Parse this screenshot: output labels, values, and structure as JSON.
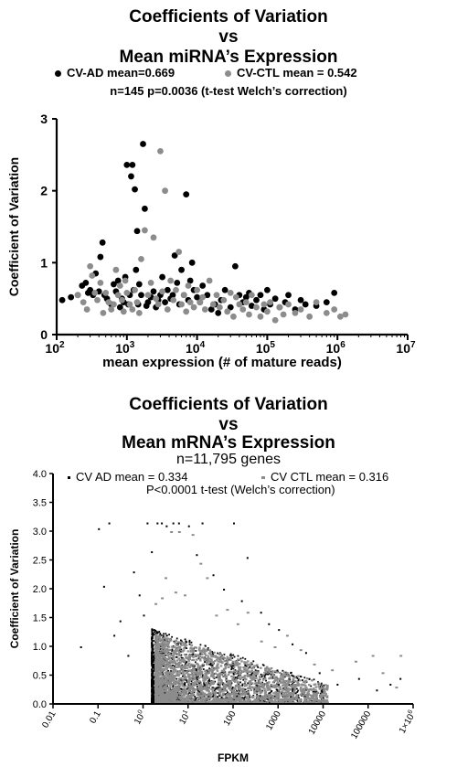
{
  "chart_data": [
    {
      "type": "scatter",
      "title": [
        "Coefficients of Variation",
        "vs",
        "Mean miRNA’s Expression"
      ],
      "subtitle": "n=145 p=0.0036 (t-test Welch’s correction)",
      "xlabel": "mean expression (# of mature reads)",
      "ylabel": "Coefficient of Variation",
      "xscale": "log",
      "xlim": [
        100,
        10000000
      ],
      "ylim": [
        0,
        3
      ],
      "yticks": [
        "0",
        "1",
        "2",
        "3"
      ],
      "xticks": [
        {
          "base": "10",
          "exp": "2"
        },
        {
          "base": "10",
          "exp": "3"
        },
        {
          "base": "10",
          "exp": "4"
        },
        {
          "base": "10",
          "exp": "5"
        },
        {
          "base": "10",
          "exp": "6"
        },
        {
          "base": "10",
          "exp": "7"
        }
      ],
      "legend_position": "top",
      "series": [
        {
          "name": "CV-AD mean=0.669",
          "color": "#000000",
          "points": [
            [
              120,
              0.48
            ],
            [
              160,
              0.52
            ],
            [
              200,
              0.55
            ],
            [
              230,
              0.68
            ],
            [
              260,
              0.72
            ],
            [
              280,
              0.58
            ],
            [
              300,
              0.62
            ],
            [
              330,
              0.55
            ],
            [
              360,
              0.85
            ],
            [
              400,
              0.6
            ],
            [
              420,
              1.08
            ],
            [
              450,
              1.28
            ],
            [
              480,
              0.55
            ],
            [
              520,
              0.5
            ],
            [
              600,
              0.42
            ],
            [
              650,
              0.7
            ],
            [
              700,
              0.6
            ],
            [
              750,
              0.75
            ],
            [
              800,
              0.38
            ],
            [
              850,
              0.5
            ],
            [
              900,
              0.45
            ],
            [
              950,
              0.8
            ],
            [
              1000,
              2.36
            ],
            [
              1050,
              0.42
            ],
            [
              1100,
              0.55
            ],
            [
              1150,
              2.2
            ],
            [
              1200,
              2.36
            ],
            [
              1250,
              0.62
            ],
            [
              1300,
              2.02
            ],
            [
              1350,
              0.9
            ],
            [
              1400,
              1.44
            ],
            [
              1450,
              0.42
            ],
            [
              1500,
              0.7
            ],
            [
              1600,
              0.55
            ],
            [
              1700,
              2.65
            ],
            [
              1800,
              1.75
            ],
            [
              1900,
              0.4
            ],
            [
              2000,
              0.45
            ],
            [
              2200,
              0.52
            ],
            [
              2400,
              0.6
            ],
            [
              2600,
              0.38
            ],
            [
              2800,
              0.48
            ],
            [
              3000,
              0.55
            ],
            [
              3200,
              0.8
            ],
            [
              3500,
              0.45
            ],
            [
              3800,
              0.62
            ],
            [
              4200,
              0.5
            ],
            [
              4500,
              0.55
            ],
            [
              4800,
              1.1
            ],
            [
              5200,
              0.72
            ],
            [
              5600,
              0.42
            ],
            [
              6000,
              0.9
            ],
            [
              6500,
              0.55
            ],
            [
              7000,
              1.95
            ],
            [
              7500,
              0.48
            ],
            [
              8000,
              0.75
            ],
            [
              8500,
              1.0
            ],
            [
              9000,
              0.62
            ],
            [
              10000,
              0.52
            ],
            [
              11000,
              0.45
            ],
            [
              12000,
              0.68
            ],
            [
              14000,
              0.55
            ],
            [
              16000,
              0.35
            ],
            [
              18000,
              0.42
            ],
            [
              20000,
              0.3
            ],
            [
              22000,
              0.48
            ],
            [
              25000,
              0.62
            ],
            [
              30000,
              0.38
            ],
            [
              35000,
              0.95
            ],
            [
              40000,
              0.55
            ],
            [
              45000,
              0.45
            ],
            [
              50000,
              0.52
            ],
            [
              55000,
              0.58
            ],
            [
              60000,
              0.4
            ],
            [
              70000,
              0.48
            ],
            [
              80000,
              0.55
            ],
            [
              90000,
              0.35
            ],
            [
              100000,
              0.62
            ],
            [
              110000,
              0.42
            ],
            [
              130000,
              0.5
            ],
            [
              150000,
              0.38
            ],
            [
              180000,
              0.45
            ],
            [
              200000,
              0.55
            ],
            [
              250000,
              0.35
            ],
            [
              300000,
              0.48
            ],
            [
              350000,
              0.42
            ],
            [
              500000,
              0.4
            ],
            [
              700000,
              0.45
            ],
            [
              900000,
              0.58
            ]
          ]
        },
        {
          "name": "CV-CTL mean = 0.542",
          "color": "#8c8c8c",
          "points": [
            [
              200,
              0.55
            ],
            [
              240,
              0.45
            ],
            [
              270,
              0.35
            ],
            [
              300,
              0.95
            ],
            [
              320,
              0.82
            ],
            [
              350,
              0.58
            ],
            [
              380,
              0.48
            ],
            [
              420,
              0.72
            ],
            [
              460,
              0.3
            ],
            [
              500,
              0.58
            ],
            [
              550,
              0.45
            ],
            [
              600,
              0.35
            ],
            [
              650,
              0.42
            ],
            [
              700,
              0.9
            ],
            [
              750,
              0.55
            ],
            [
              800,
              0.68
            ],
            [
              850,
              0.48
            ],
            [
              900,
              0.32
            ],
            [
              950,
              0.75
            ],
            [
              1000,
              0.58
            ],
            [
              1100,
              0.42
            ],
            [
              1200,
              0.35
            ],
            [
              1300,
              0.62
            ],
            [
              1400,
              0.45
            ],
            [
              1500,
              0.3
            ],
            [
              1600,
              1.05
            ],
            [
              1800,
              1.45
            ],
            [
              2000,
              0.55
            ],
            [
              2200,
              0.72
            ],
            [
              2400,
              1.35
            ],
            [
              2600,
              0.5
            ],
            [
              2800,
              0.42
            ],
            [
              3000,
              2.55
            ],
            [
              3200,
              0.6
            ],
            [
              3500,
              2.0
            ],
            [
              3800,
              0.35
            ],
            [
              4200,
              0.75
            ],
            [
              4600,
              0.48
            ],
            [
              5000,
              0.62
            ],
            [
              5500,
              1.15
            ],
            [
              6000,
              0.42
            ],
            [
              6500,
              0.55
            ],
            [
              7000,
              0.32
            ],
            [
              7500,
              0.68
            ],
            [
              8000,
              0.45
            ],
            [
              9000,
              0.38
            ],
            [
              10000,
              0.62
            ],
            [
              11000,
              0.45
            ],
            [
              12000,
              0.52
            ],
            [
              13000,
              0.35
            ],
            [
              15000,
              0.75
            ],
            [
              17000,
              0.42
            ],
            [
              19000,
              0.55
            ],
            [
              21000,
              0.38
            ],
            [
              24000,
              0.48
            ],
            [
              27000,
              0.32
            ],
            [
              30000,
              0.58
            ],
            [
              33000,
              0.25
            ],
            [
              36000,
              0.52
            ],
            [
              40000,
              0.42
            ],
            [
              45000,
              0.35
            ],
            [
              50000,
              0.45
            ],
            [
              55000,
              0.28
            ],
            [
              60000,
              0.55
            ],
            [
              70000,
              0.38
            ],
            [
              80000,
              0.25
            ],
            [
              90000,
              0.42
            ],
            [
              100000,
              0.32
            ],
            [
              110000,
              0.45
            ],
            [
              130000,
              0.2
            ],
            [
              150000,
              0.38
            ],
            [
              170000,
              0.28
            ],
            [
              200000,
              0.42
            ],
            [
              250000,
              0.3
            ],
            [
              300000,
              0.35
            ],
            [
              400000,
              0.25
            ],
            [
              500000,
              0.45
            ],
            [
              700000,
              0.3
            ],
            [
              900000,
              0.35
            ],
            [
              1100000,
              0.25
            ],
            [
              1300000,
              0.28
            ]
          ]
        }
      ]
    },
    {
      "type": "scatter",
      "title": [
        "Coefficients of Variation",
        "vs",
        "Mean mRNA’s Expression"
      ],
      "subtitle": "n=11,795 genes",
      "annotation": "P<0.0001 t-test (Welch’s correction)",
      "xlabel": "FPKM",
      "ylabel": "Coefficient of Variation",
      "xscale": "log",
      "xlim": [
        0.01,
        1000000
      ],
      "ylim": [
        0,
        4
      ],
      "yticks": [
        "0.0",
        "0.5",
        "1.0",
        "1.5",
        "2.0",
        "2.5",
        "3.0",
        "3.5",
        "4.0"
      ],
      "xticks": [
        {
          "label": "0.01"
        },
        {
          "label": "0.1"
        },
        {
          "label": "10",
          "sup": "0"
        },
        {
          "label": "10",
          "sup": "1"
        },
        {
          "label": "100"
        },
        {
          "label": "1000"
        },
        {
          "label": "10000"
        },
        {
          "label": "100000"
        },
        {
          "label": "1×10",
          "sup": "6"
        }
      ],
      "legend_position": "top",
      "series": [
        {
          "name": "CV AD mean = 0.334",
          "color": "#000000",
          "points": [
            [
              0.04,
              1.0
            ],
            [
              0.1,
              3.05
            ],
            [
              0.13,
              2.05
            ],
            [
              0.17,
              3.15
            ],
            [
              0.22,
              1.2
            ],
            [
              0.3,
              1.45
            ],
            [
              0.45,
              0.85
            ],
            [
              0.6,
              2.3
            ],
            [
              0.8,
              1.9
            ],
            [
              1.0,
              1.55
            ],
            [
              1.2,
              3.15
            ],
            [
              1.5,
              2.65
            ],
            [
              2.0,
              3.15
            ],
            [
              2.5,
              3.15
            ],
            [
              3.2,
              3.1
            ],
            [
              4.5,
              3.15
            ],
            [
              6,
              3.15
            ],
            [
              10,
              3.1
            ],
            [
              15,
              2.6
            ],
            [
              20,
              3.15
            ],
            [
              35,
              2.25
            ],
            [
              60,
              2.0
            ],
            [
              100,
              3.15
            ],
            [
              150,
              1.8
            ],
            [
              200,
              2.55
            ],
            [
              400,
              1.6
            ],
            [
              600,
              1.4
            ],
            [
              1000,
              1.3
            ],
            [
              2000,
              1.05
            ],
            [
              4000,
              0.9
            ],
            [
              8000,
              0.55
            ],
            [
              20000,
              0.35
            ],
            [
              60000,
              0.45
            ],
            [
              150000,
              0.25
            ],
            [
              300000,
              0.35
            ],
            [
              500000,
              0.45
            ]
          ],
          "dense_clusters": [
            {
              "x_range": [
                1.5,
                10000
              ],
              "y_range": [
                0.0,
                1.3
              ]
            }
          ]
        },
        {
          "name": "CV CTL mean = 0.316",
          "color": "#8c8c8c",
          "points": [
            [
              1.8,
              1.75
            ],
            [
              2.5,
              1.85
            ],
            [
              3,
              2.2
            ],
            [
              4,
              3.0
            ],
            [
              5,
              1.95
            ],
            [
              6,
              3.0
            ],
            [
              8,
              1.9
            ],
            [
              12,
              2.95
            ],
            [
              18,
              2.45
            ],
            [
              25,
              2.2
            ],
            [
              40,
              1.55
            ],
            [
              70,
              1.65
            ],
            [
              120,
              1.4
            ],
            [
              200,
              1.6
            ],
            [
              400,
              1.1
            ],
            [
              800,
              1.0
            ],
            [
              1500,
              1.2
            ],
            [
              3000,
              0.95
            ],
            [
              6000,
              0.7
            ],
            [
              15000,
              0.6
            ],
            [
              50000,
              0.75
            ],
            [
              120000,
              0.85
            ],
            [
              200000,
              0.55
            ],
            [
              400000,
              0.3
            ],
            [
              500000,
              0.85
            ]
          ],
          "dense_clusters": [
            {
              "x_range": [
                1.8,
                12000
              ],
              "y_range": [
                0.0,
                1.2
              ]
            }
          ]
        }
      ]
    }
  ]
}
